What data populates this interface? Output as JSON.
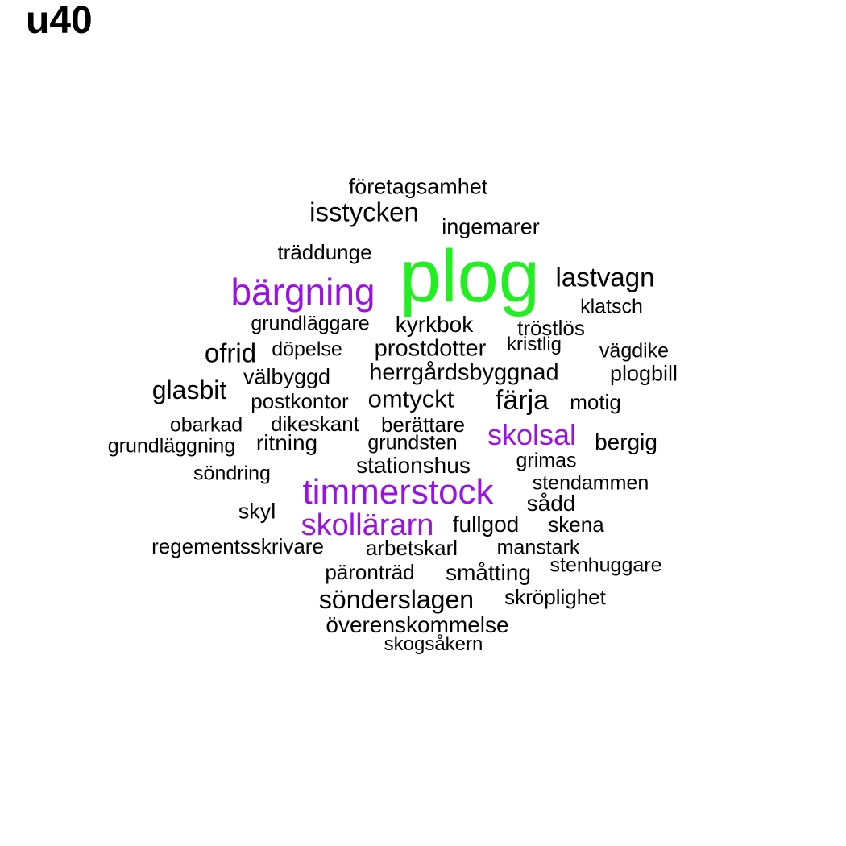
{
  "title": "u40",
  "colors": {
    "highlight_green": "#22ee22",
    "highlight_purple": "#9b10e8",
    "default": "#000000"
  },
  "words": [
    {
      "text": "plog",
      "color": "highlight_green"
    },
    {
      "text": "bärgning",
      "color": "highlight_purple"
    },
    {
      "text": "timmerstock",
      "color": "highlight_purple"
    },
    {
      "text": "skollärarn",
      "color": "highlight_purple"
    },
    {
      "text": "skolsal",
      "color": "highlight_purple"
    },
    {
      "text": "företagsamhet",
      "color": "default"
    },
    {
      "text": "isstycken",
      "color": "default"
    },
    {
      "text": "ingemarer",
      "color": "default"
    },
    {
      "text": "träddunge",
      "color": "default"
    },
    {
      "text": "lastvagn",
      "color": "default"
    },
    {
      "text": "klatsch",
      "color": "default"
    },
    {
      "text": "grundläggare",
      "color": "default"
    },
    {
      "text": "kyrkbok",
      "color": "default"
    },
    {
      "text": "tröstlös",
      "color": "default"
    },
    {
      "text": "ofrid",
      "color": "default"
    },
    {
      "text": "döpelse",
      "color": "default"
    },
    {
      "text": "prostdotter",
      "color": "default"
    },
    {
      "text": "kristlig",
      "color": "default"
    },
    {
      "text": "vägdike",
      "color": "default"
    },
    {
      "text": "välbyggd",
      "color": "default"
    },
    {
      "text": "herrgårdsbyggnad",
      "color": "default"
    },
    {
      "text": "plogbill",
      "color": "default"
    },
    {
      "text": "glasbit",
      "color": "default"
    },
    {
      "text": "postkontor",
      "color": "default"
    },
    {
      "text": "omtyckt",
      "color": "default"
    },
    {
      "text": "färja",
      "color": "default"
    },
    {
      "text": "motig",
      "color": "default"
    },
    {
      "text": "obarkad",
      "color": "default"
    },
    {
      "text": "dikeskant",
      "color": "default"
    },
    {
      "text": "berättare",
      "color": "default"
    },
    {
      "text": "grundläggning",
      "color": "default"
    },
    {
      "text": "ritning",
      "color": "default"
    },
    {
      "text": "grundsten",
      "color": "default"
    },
    {
      "text": "bergig",
      "color": "default"
    },
    {
      "text": "stationshus",
      "color": "default"
    },
    {
      "text": "grimas",
      "color": "default"
    },
    {
      "text": "söndring",
      "color": "default"
    },
    {
      "text": "stendammen",
      "color": "default"
    },
    {
      "text": "skyl",
      "color": "default"
    },
    {
      "text": "sådd",
      "color": "default"
    },
    {
      "text": "fullgod",
      "color": "default"
    },
    {
      "text": "skena",
      "color": "default"
    },
    {
      "text": "regementsskrivare",
      "color": "default"
    },
    {
      "text": "arbetskarl",
      "color": "default"
    },
    {
      "text": "manstark",
      "color": "default"
    },
    {
      "text": "päronträd",
      "color": "default"
    },
    {
      "text": "småtting",
      "color": "default"
    },
    {
      "text": "stenhuggare",
      "color": "default"
    },
    {
      "text": "sönderslagen",
      "color": "default"
    },
    {
      "text": "skröplighet",
      "color": "default"
    },
    {
      "text": "överenskommelse",
      "color": "default"
    },
    {
      "text": "skogsåkern",
      "color": "default"
    }
  ]
}
